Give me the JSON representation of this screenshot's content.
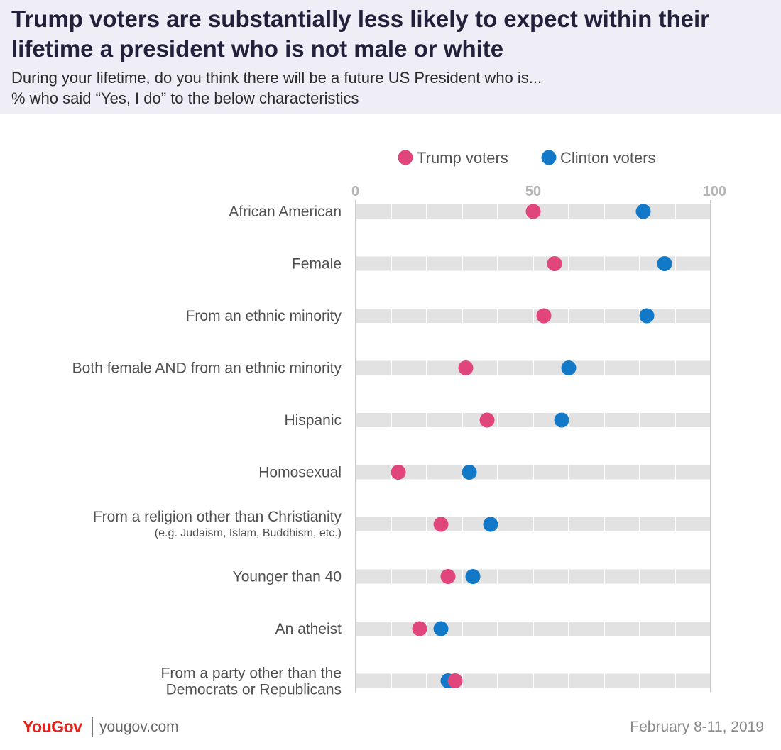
{
  "header": {
    "title_line1": "Trump voters are substantially less likely to expect within their",
    "title_line2": "lifetime a president who is not male or white",
    "subtitle_line1": "During your lifetime, do you think there will be a future US President who is...",
    "subtitle_line2": "% who said “Yes, I do” to the below characteristics"
  },
  "chart_data": {
    "type": "scatter",
    "xlim": [
      0,
      100
    ],
    "x_ticks": [
      "0",
      "50",
      "100"
    ],
    "legend_placement": "top",
    "grid": true,
    "series": [
      {
        "name": "Trump voters",
        "color": "#e0457b",
        "values": [
          50,
          56,
          53,
          31,
          37,
          12,
          24,
          26,
          18,
          28
        ]
      },
      {
        "name": "Clinton voters",
        "color": "#1278c8",
        "values": [
          81,
          87,
          82,
          60,
          58,
          32,
          38,
          33,
          24,
          26
        ]
      }
    ],
    "categories": [
      {
        "label": "African American",
        "sublabel": ""
      },
      {
        "label": "Female",
        "sublabel": ""
      },
      {
        "label": "From an ethnic minority",
        "sublabel": ""
      },
      {
        "label": "Both female AND from an ethnic minority",
        "sublabel": ""
      },
      {
        "label": "Hispanic",
        "sublabel": ""
      },
      {
        "label": "Homosexual",
        "sublabel": ""
      },
      {
        "label": "From a religion other than Christianity",
        "sublabel": "(e.g. Judaism, Islam, Buddhism, etc.)"
      },
      {
        "label": "Younger than 40",
        "sublabel": ""
      },
      {
        "label": "An atheist",
        "sublabel": ""
      },
      {
        "label": "From a party other than the",
        "sublabel": "Democrats or Republicans"
      }
    ]
  },
  "footer": {
    "logo": "YouGov",
    "site": "yougov.com",
    "date": "February 8-11, 2019"
  }
}
